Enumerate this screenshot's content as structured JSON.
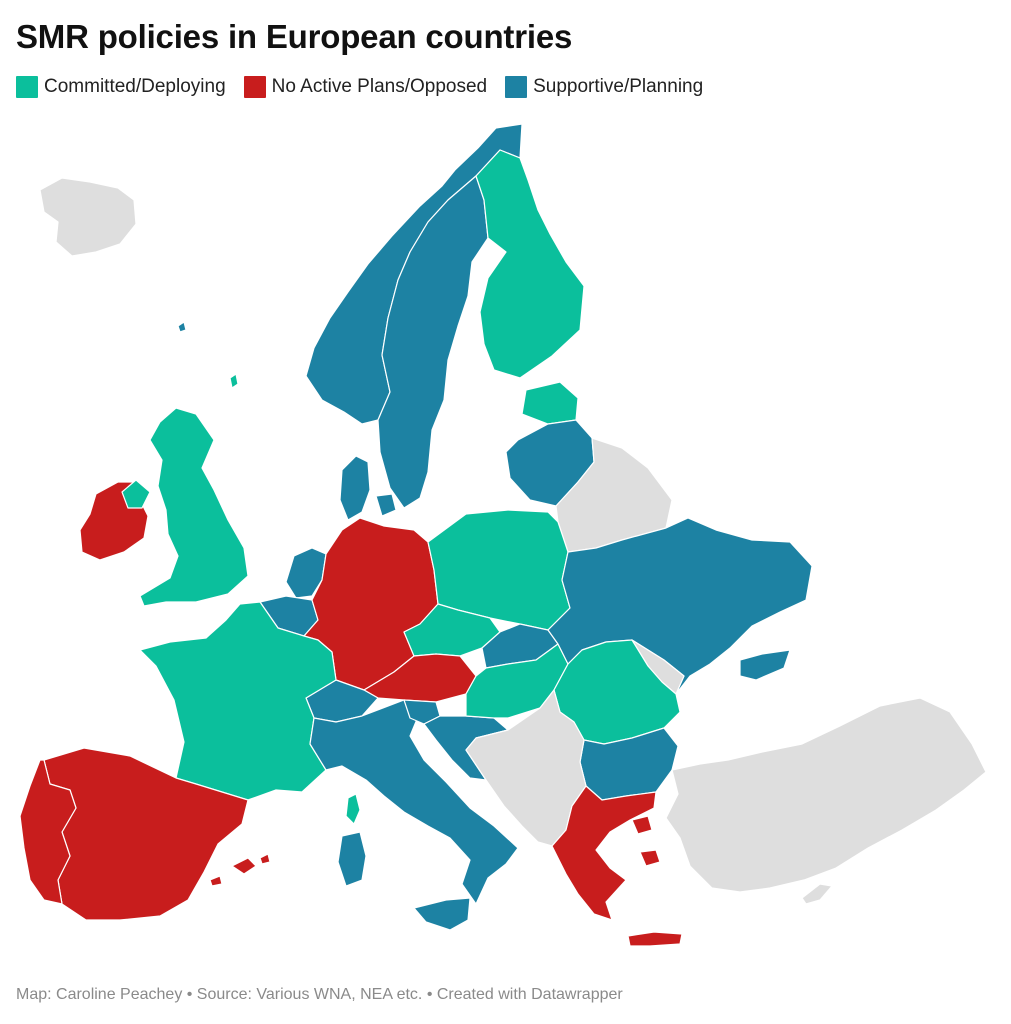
{
  "title": "SMR policies in European countries",
  "legend": [
    {
      "label": "Committed/Deploying",
      "color": "#0bbf9c"
    },
    {
      "label": "No Active Plans/Opposed",
      "color": "#c81d1d"
    },
    {
      "label": "Supportive/Planning",
      "color": "#1d82a3"
    }
  ],
  "no_data_color": "#dedede",
  "countries": {
    "iceland": "none",
    "norway": "supportive",
    "sweden": "supportive",
    "finland": "committed",
    "estonia": "committed",
    "latvia_lithuania": "supportive",
    "belarus": "none",
    "denmark": "supportive",
    "united_kingdom": "committed",
    "ireland": "opposed",
    "netherlands": "supportive",
    "belgium": "supportive",
    "germany": "opposed",
    "poland": "committed",
    "czechia": "committed",
    "slovakia": "supportive",
    "austria": "opposed",
    "switzerland": "supportive",
    "france": "committed",
    "spain": "opposed",
    "portugal": "opposed",
    "italy": "supportive",
    "slovenia": "supportive",
    "croatia": "supportive",
    "hungary": "committed",
    "romania": "committed",
    "moldova": "none",
    "ukraine": "supportive",
    "bulgaria": "supportive",
    "serbia_balkans": "none",
    "greece": "opposed",
    "turkey": "none",
    "corsica": "committed",
    "sardinia": "supportive",
    "sicily": "supportive",
    "balearics": "opposed",
    "crete": "opposed",
    "cyprus": "none"
  },
  "footer": "Map: Caroline Peachey • Source: Various WNA, NEA etc. • Created with Datawrapper"
}
